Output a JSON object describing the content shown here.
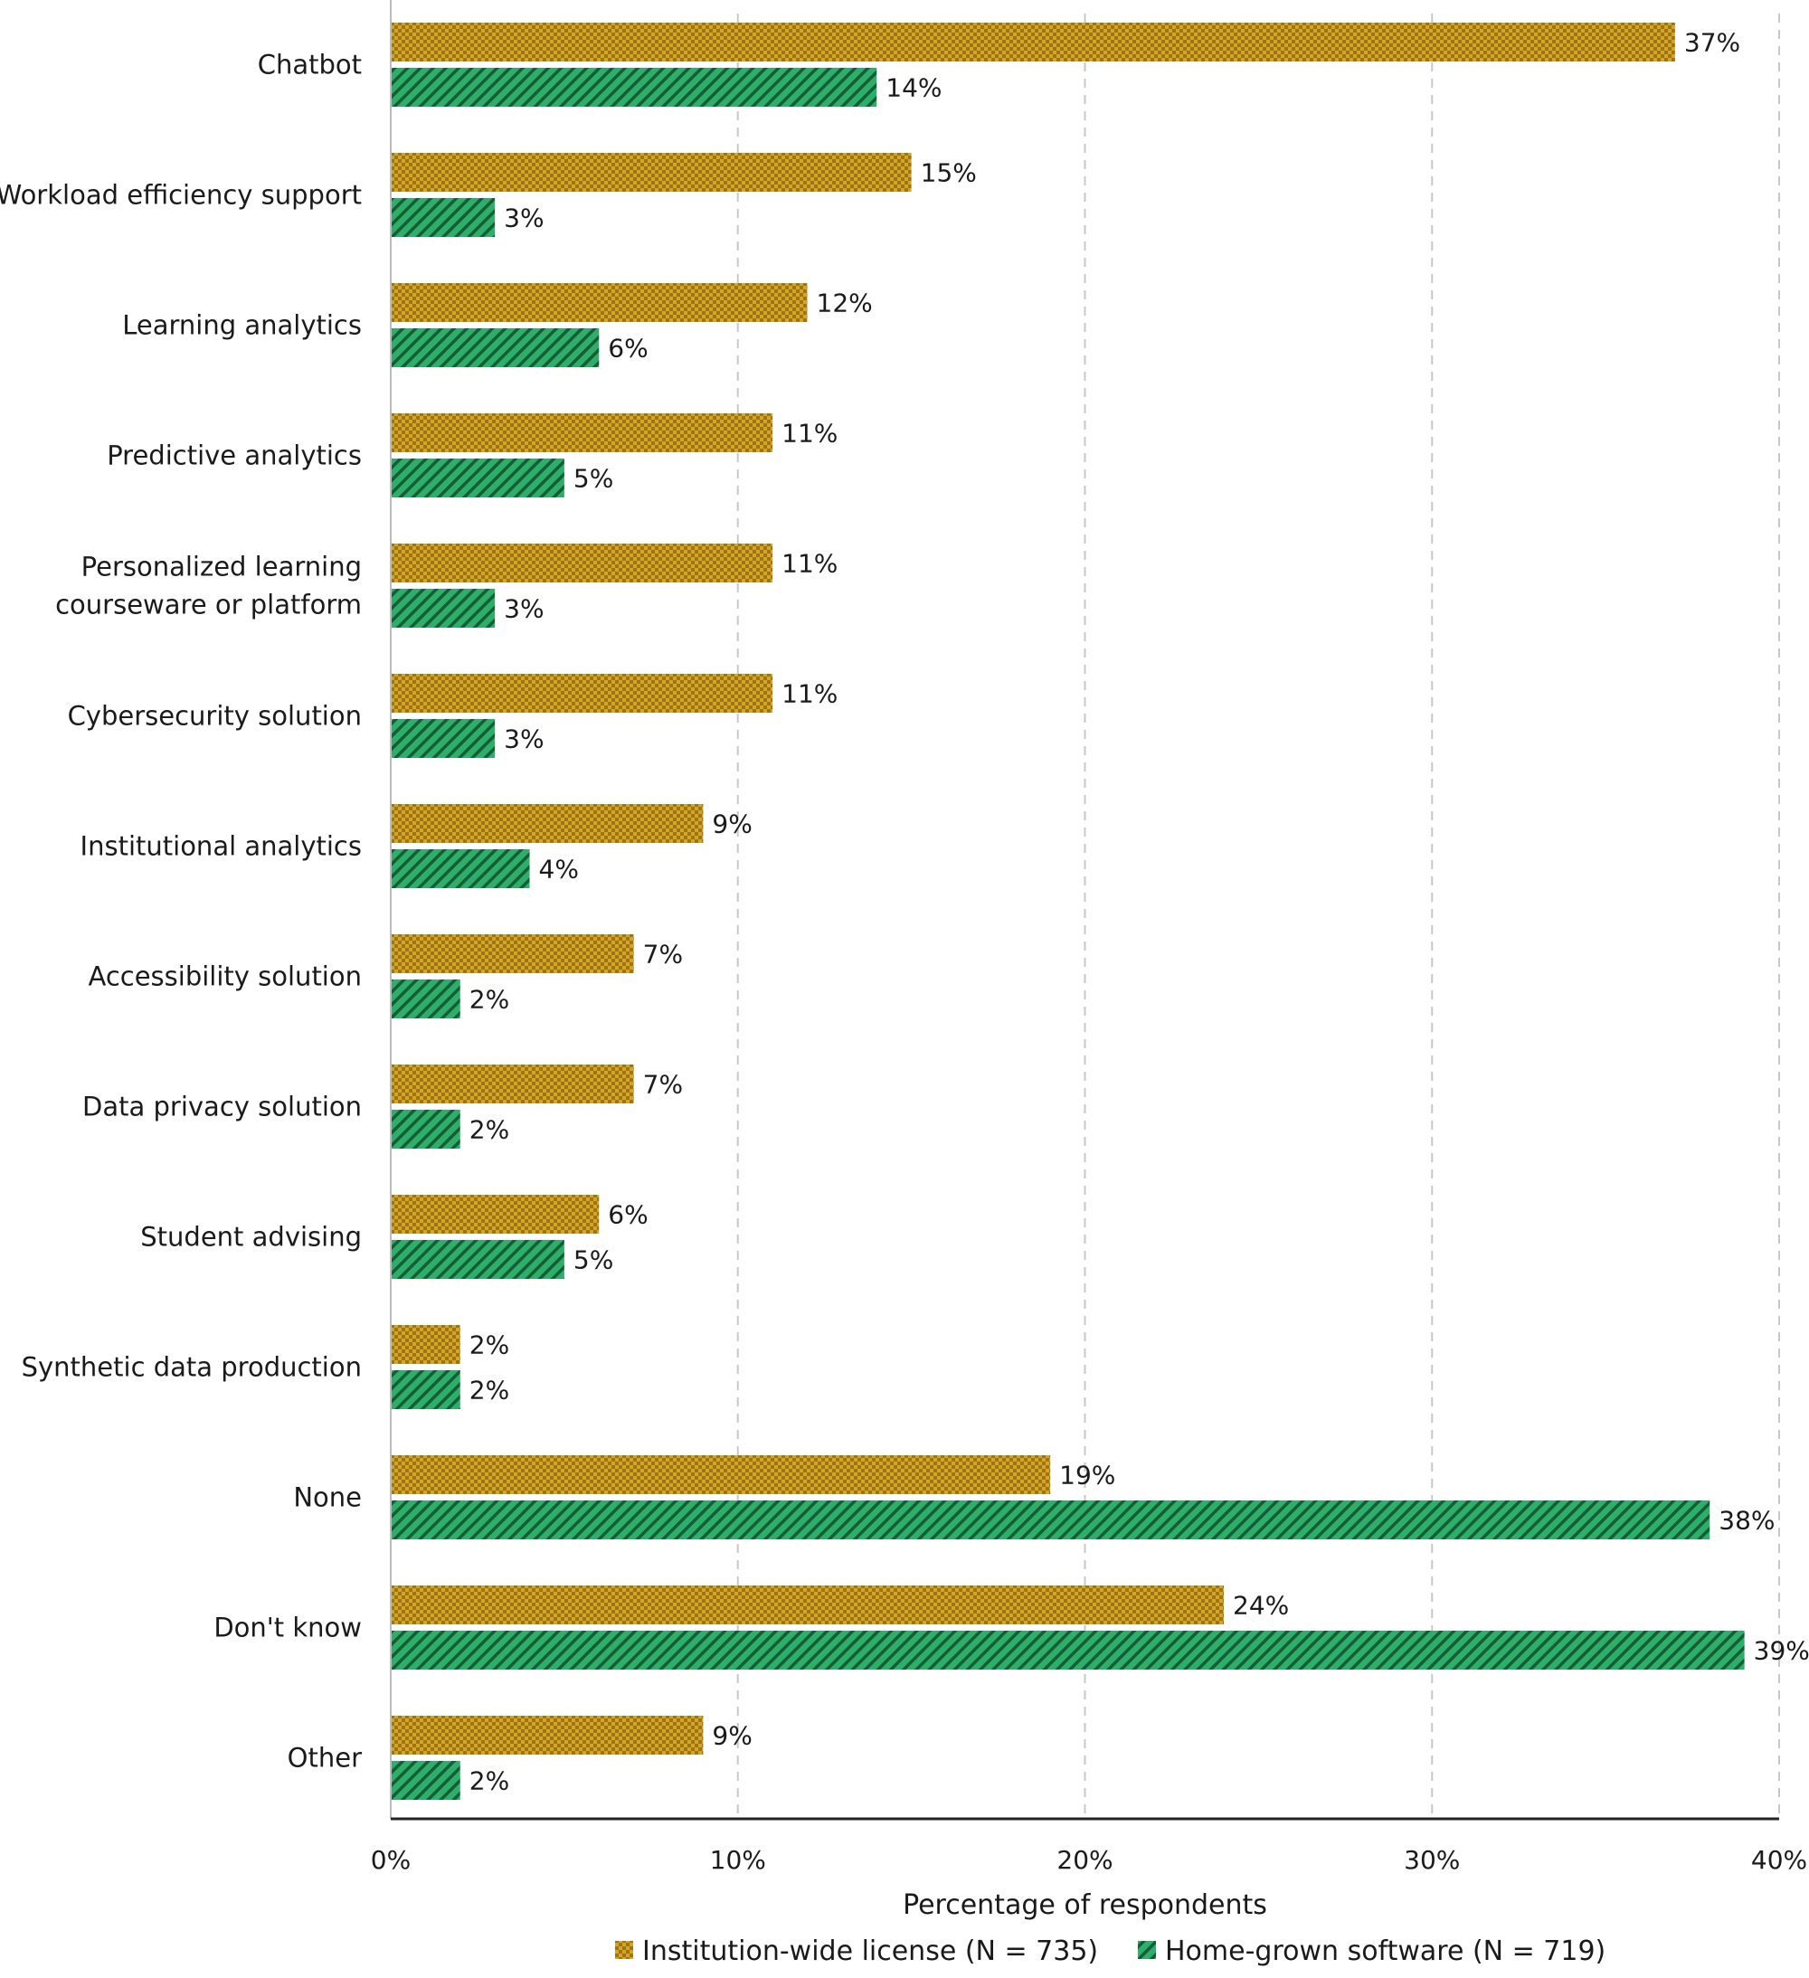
{
  "chart_data": {
    "type": "bar",
    "orientation": "horizontal",
    "categories": [
      "Chatbot",
      "Workload efficiency support",
      "Learning analytics",
      "Predictive analytics",
      "Personalized learning courseware or platform",
      "Cybersecurity solution",
      "Institutional analytics",
      "Accessibility solution",
      "Data privacy solution",
      "Student advising",
      "Synthetic data production",
      "None",
      "Don't know",
      "Other"
    ],
    "category_lines": [
      [
        "Chatbot"
      ],
      [
        "Workload efficiency support"
      ],
      [
        "Learning analytics"
      ],
      [
        "Predictive analytics"
      ],
      [
        "Personalized learning",
        "courseware or platform"
      ],
      [
        "Cybersecurity solution"
      ],
      [
        "Institutional analytics"
      ],
      [
        "Accessibility solution"
      ],
      [
        "Data privacy solution"
      ],
      [
        "Student advising"
      ],
      [
        "Synthetic data production"
      ],
      [
        "None"
      ],
      [
        "Don't know"
      ],
      [
        "Other"
      ]
    ],
    "series": [
      {
        "name": "Institution-wide license (N = 735)",
        "color": "#D4A52A",
        "pattern": "checker",
        "values": [
          37,
          15,
          12,
          11,
          11,
          11,
          9,
          7,
          7,
          6,
          2,
          19,
          24,
          9
        ]
      },
      {
        "name": "Home-grown software (N = 719)",
        "color": "#2EAE68",
        "pattern": "diagonal-hatch",
        "values": [
          14,
          3,
          6,
          5,
          3,
          3,
          4,
          2,
          2,
          5,
          2,
          38,
          39,
          2
        ]
      }
    ],
    "value_suffix": "%",
    "xlim": [
      0,
      40
    ],
    "xticks": [
      0,
      10,
      20,
      30,
      40
    ],
    "xtick_labels": [
      "0%",
      "10%",
      "20%",
      "30%",
      "40%"
    ],
    "xlabel": "Percentage of respondents",
    "ylabel": "",
    "grid": "vertical dashed",
    "legend_position": "bottom"
  }
}
